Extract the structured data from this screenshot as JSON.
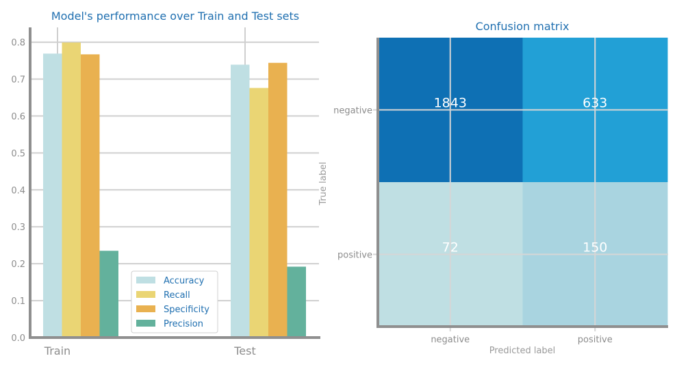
{
  "chart_data": [
    {
      "type": "bar",
      "title": "Model's performance over Train and Test sets",
      "categories": [
        "Train",
        "Test"
      ],
      "series": [
        {
          "name": "Accuracy",
          "values": [
            0.769,
            0.739
          ],
          "color": "#bfdfe3"
        },
        {
          "name": "Recall",
          "values": [
            0.799,
            0.676
          ],
          "color": "#ead574"
        },
        {
          "name": "Specificity",
          "values": [
            0.767,
            0.744
          ],
          "color": "#e9b150"
        },
        {
          "name": "Precision",
          "values": [
            0.235,
            0.192
          ],
          "color": "#63b19c"
        }
      ],
      "ylim": [
        0,
        0.84
      ],
      "yticks": [
        "0.0",
        "0.1",
        "0.2",
        "0.3",
        "0.4",
        "0.5",
        "0.6",
        "0.7",
        "0.8"
      ],
      "xlabel": "",
      "ylabel": "",
      "grid": true,
      "legend": "lower-center"
    },
    {
      "type": "heatmap",
      "title": "Confusion matrix",
      "xlabel": "Predicted label",
      "ylabel": "True label",
      "xticklabels": [
        "negative",
        "positive"
      ],
      "yticklabels": [
        "negative",
        "positive"
      ],
      "values": [
        [
          1843,
          633
        ],
        [
          72,
          150
        ]
      ],
      "display": [
        [
          "1843",
          "633"
        ],
        [
          "72",
          "150"
        ]
      ],
      "cell_colors": [
        [
          "#0e70b4",
          "#22a0d6"
        ],
        [
          "#bfdfe3",
          "#a9d4e0"
        ]
      ]
    }
  ]
}
